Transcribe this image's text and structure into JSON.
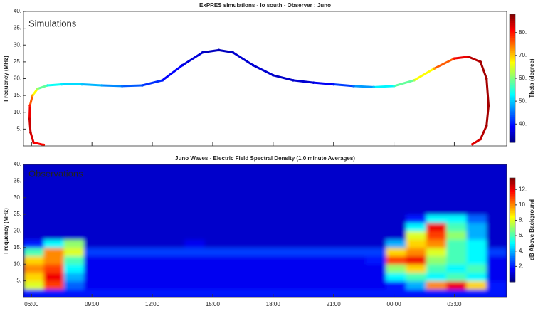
{
  "chart_data": [
    {
      "type": "scatter",
      "title": "ExPRES simulations - Io south - Observer : Juno",
      "ylabel": "Frequency (MHz)",
      "annotation": "Simulations",
      "x": [
        6.6,
        6.1,
        5.95,
        5.9,
        5.92,
        6.05,
        6.3,
        6.8,
        7.5,
        8.5,
        9.5,
        10.5,
        11.5,
        12.5,
        13.5,
        14.5,
        15.3,
        16,
        17,
        18,
        19,
        20,
        21,
        22,
        23,
        24,
        25,
        26,
        27,
        27.7,
        28.3,
        28.6,
        28.7,
        28.6,
        28.3,
        27.9
      ],
      "y": [
        0.3,
        1,
        4,
        8,
        12,
        15,
        17,
        18,
        18.3,
        18.3,
        18,
        17.8,
        18,
        19.5,
        24,
        27.8,
        28.5,
        27.8,
        24,
        21,
        19.5,
        18.8,
        18.3,
        17.8,
        17.5,
        17.8,
        19.5,
        23,
        26,
        26.5,
        25,
        20,
        12,
        6,
        2,
        0.5
      ],
      "c": [
        80,
        82,
        84,
        84,
        80,
        72,
        62,
        55,
        52,
        50,
        48,
        45,
        43,
        40,
        38,
        36,
        35,
        36,
        37,
        36,
        36,
        37,
        40,
        45,
        50,
        55,
        62,
        72,
        80,
        84,
        86,
        86,
        86,
        86,
        84,
        82
      ],
      "clabel": "Theta (degree)",
      "clim": [
        32,
        88
      ],
      "cticks": [
        {
          "value": 40,
          "label": "40."
        },
        {
          "value": 50,
          "label": "50."
        },
        {
          "value": 60,
          "label": "60."
        },
        {
          "value": 70,
          "label": "70."
        },
        {
          "value": 80,
          "label": "80."
        }
      ],
      "xlim": [
        5.6,
        29.6
      ],
      "ylim": [
        0,
        40
      ],
      "yticks": [
        {
          "value": 5,
          "label": "5."
        },
        {
          "value": 10,
          "label": "10."
        },
        {
          "value": 15,
          "label": "15."
        },
        {
          "value": 20,
          "label": "20."
        },
        {
          "value": 25,
          "label": "25."
        },
        {
          "value": 30,
          "label": "30."
        },
        {
          "value": 35,
          "label": "35."
        },
        {
          "value": 40,
          "label": "40."
        }
      ]
    },
    {
      "type": "heatmap",
      "title": "Juno Waves - Electric Field Spectral Density (1.0 minute Averages)",
      "ylabel": "Frequency (MHz)",
      "annotation": "Observations",
      "xbins": [
        5.6,
        6.6,
        7.6,
        8.6,
        9.6,
        10.6,
        11.6,
        12.6,
        13.6,
        14.6,
        15.6,
        16.6,
        17.6,
        18.6,
        19.6,
        20.6,
        21.6,
        22.6,
        23.6,
        24.6,
        25.6,
        26.6,
        27.6,
        28.6,
        29.6
      ],
      "ybins": [
        0,
        2.5,
        5,
        7.5,
        10,
        12.5,
        15,
        17.5,
        20,
        22.5,
        25,
        27.5,
        30,
        32.5,
        35,
        37.5,
        40
      ],
      "values": [
        [
          2,
          2,
          2,
          2,
          2,
          2,
          2,
          2,
          2,
          2,
          2,
          2,
          2,
          2,
          2,
          2,
          2,
          2,
          2,
          2,
          2,
          2,
          2,
          2
        ],
        [
          8,
          11,
          3,
          1.5,
          1.5,
          1.5,
          1.5,
          1.5,
          1.5,
          1.5,
          1.5,
          1.5,
          1.5,
          1.5,
          1.5,
          1.5,
          1.5,
          1.5,
          2,
          4,
          10,
          12,
          9,
          2
        ],
        [
          9,
          12,
          4,
          1.5,
          1.5,
          1.5,
          1.5,
          1.5,
          1.5,
          1.5,
          1.5,
          1.5,
          1.5,
          1.5,
          1.5,
          1.5,
          1.5,
          1.5,
          5,
          6,
          5,
          6,
          5,
          1.5
        ],
        [
          10,
          11,
          5,
          1.5,
          1.5,
          1.5,
          1.5,
          1.5,
          1.5,
          1.5,
          1.5,
          1.5,
          1.5,
          1.5,
          1.5,
          1.5,
          1.5,
          1.5,
          7,
          9,
          6,
          5,
          6,
          1.5
        ],
        [
          9,
          10,
          6,
          1.5,
          1.5,
          1.5,
          1.5,
          1.5,
          1.5,
          1.5,
          1.5,
          1.5,
          1.5,
          1.5,
          1.5,
          1.5,
          1.5,
          2,
          11,
          12,
          7,
          6,
          5,
          1.5
        ],
        [
          6,
          10,
          8,
          2.5,
          2.5,
          2.5,
          2.5,
          2.5,
          2.5,
          2.5,
          2.5,
          2.5,
          2.5,
          2.5,
          2.5,
          2.5,
          2.5,
          2.5,
          9,
          10,
          8,
          6,
          5,
          2.5
        ],
        [
          2,
          5,
          7,
          1,
          1,
          1,
          1,
          1,
          1.5,
          1,
          1,
          1,
          1,
          1,
          1,
          1,
          1,
          1,
          4,
          9,
          10,
          6,
          5,
          1
        ],
        [
          1,
          1,
          1,
          1,
          1,
          1,
          1,
          1,
          1,
          1,
          1,
          1,
          1,
          1,
          1,
          1,
          1,
          1,
          1,
          8,
          11,
          7,
          4,
          1
        ],
        [
          1,
          1,
          1,
          1,
          1,
          1,
          1,
          1,
          1,
          1,
          1,
          1,
          1,
          1,
          1,
          1,
          1,
          1,
          1,
          5,
          12,
          6,
          4,
          1
        ],
        [
          1,
          1,
          1,
          1,
          1,
          1,
          1,
          1,
          1,
          1,
          1,
          1,
          1,
          1,
          1,
          1,
          1,
          1,
          1,
          2,
          5,
          5,
          3,
          1
        ],
        [
          1,
          1,
          1,
          1,
          1,
          1,
          1,
          1,
          1,
          1,
          1,
          1,
          1,
          1,
          1,
          1,
          1,
          1,
          1,
          1,
          1,
          1,
          1,
          1
        ],
        [
          1,
          1,
          1,
          1,
          1,
          1,
          1,
          1,
          1,
          1,
          1,
          1,
          1,
          1,
          1,
          1,
          1,
          1,
          1,
          1,
          1,
          1,
          1,
          1
        ],
        [
          1,
          1,
          1,
          1,
          1,
          1,
          1,
          1,
          1,
          1,
          1,
          1,
          1,
          1,
          1,
          1,
          1,
          1,
          1,
          1,
          1,
          1,
          1,
          1
        ],
        [
          1,
          1,
          1,
          1,
          1,
          1,
          1,
          1,
          1,
          1,
          1,
          1,
          1,
          1,
          1,
          1,
          1,
          1,
          1,
          1,
          1,
          1,
          1,
          1
        ],
        [
          1,
          1,
          1,
          1,
          1,
          1,
          1,
          1,
          1,
          1,
          1,
          1,
          1,
          1,
          1,
          1,
          1,
          1,
          1,
          1,
          1,
          1,
          1,
          1
        ],
        [
          1,
          1,
          1,
          1,
          1,
          1,
          1,
          1,
          1,
          1,
          1,
          1,
          1,
          1,
          1,
          1,
          1,
          1,
          1,
          1,
          1,
          1,
          1,
          1
        ]
      ],
      "clabel": "dB Above Background",
      "clim": [
        0,
        13.5
      ],
      "cticks": [
        {
          "value": 2,
          "label": "2."
        },
        {
          "value": 4,
          "label": "4."
        },
        {
          "value": 6,
          "label": "6."
        },
        {
          "value": 8,
          "label": "8."
        },
        {
          "value": 10,
          "label": "10."
        },
        {
          "value": 12,
          "label": "12."
        }
      ],
      "xlim": [
        5.6,
        29.6
      ],
      "ylim": [
        0,
        40
      ],
      "xticks": [
        {
          "value": 6,
          "label": "06:00"
        },
        {
          "value": 9,
          "label": "09:00"
        },
        {
          "value": 12,
          "label": "12:00"
        },
        {
          "value": 15,
          "label": "15:00"
        },
        {
          "value": 18,
          "label": "18:00"
        },
        {
          "value": 21,
          "label": "21:00"
        },
        {
          "value": 24,
          "label": "00:00"
        },
        {
          "value": 27,
          "label": "03:00"
        }
      ],
      "yticks": [
        {
          "value": 5,
          "label": "5."
        },
        {
          "value": 10,
          "label": "10."
        },
        {
          "value": 15,
          "label": "15."
        },
        {
          "value": 20,
          "label": "20."
        },
        {
          "value": 25,
          "label": "25."
        },
        {
          "value": 30,
          "label": "30."
        },
        {
          "value": 35,
          "label": "35."
        },
        {
          "value": 40,
          "label": "40."
        }
      ]
    }
  ]
}
